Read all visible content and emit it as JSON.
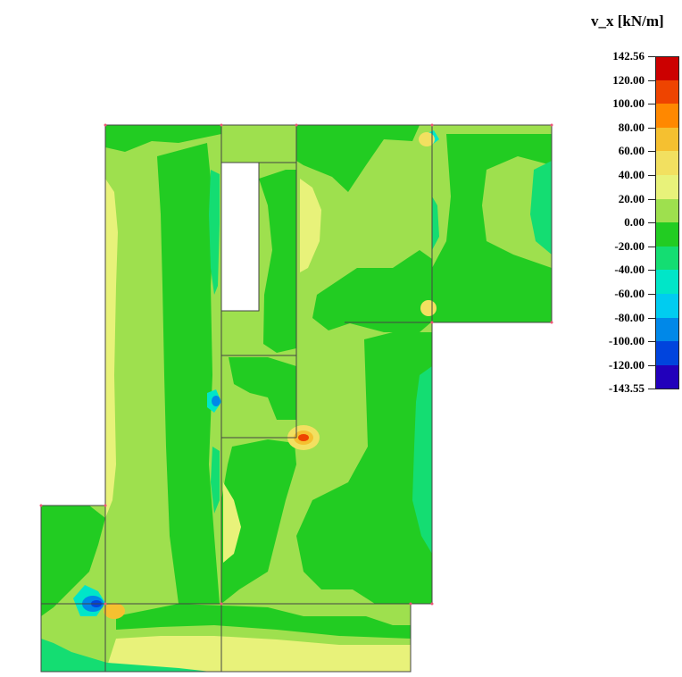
{
  "legend": {
    "title": "v_x [kN/m]",
    "labels": [
      "142.56",
      "120.00",
      "100.00",
      "80.00",
      "60.00",
      "40.00",
      "20.00",
      "0.00",
      "-20.00",
      "-40.00",
      "-60.00",
      "-80.00",
      "-100.00",
      "-120.00",
      "-143.55"
    ],
    "colors": [
      "#cc0000",
      "#ee4400",
      "#ff8800",
      "#f5c030",
      "#f2e060",
      "#e8f27a",
      "#9ee04e",
      "#22cc22",
      "#14dd72",
      "#00e6c8",
      "#00ccf0",
      "#0088e8",
      "#0044dd",
      "#2200bb"
    ]
  },
  "colors": {
    "fill_light_green": "#9ee04e",
    "fill_green": "#22cc22",
    "fill_yellow": "#e8f27a",
    "fill_teal": "#14dd72",
    "fill_cyan": "#00e6c8",
    "fill_orange": "#f2a030",
    "fill_blue": "#0044dd",
    "outline": "#444444"
  }
}
